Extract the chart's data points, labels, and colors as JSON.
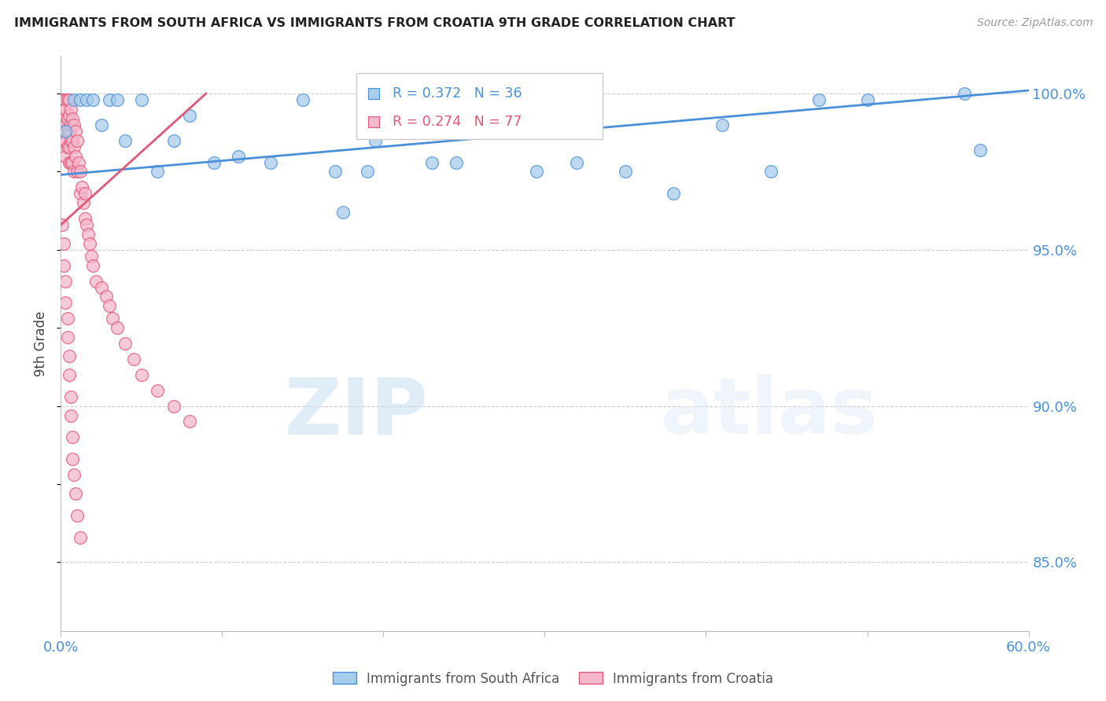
{
  "title": "IMMIGRANTS FROM SOUTH AFRICA VS IMMIGRANTS FROM CROATIA 9TH GRADE CORRELATION CHART",
  "source": "Source: ZipAtlas.com",
  "ylabel": "9th Grade",
  "xlim": [
    0.0,
    0.6
  ],
  "ylim": [
    0.828,
    1.012
  ],
  "xticks": [
    0.0,
    0.1,
    0.2,
    0.3,
    0.4,
    0.5,
    0.6
  ],
  "xticklabels": [
    "0.0%",
    "",
    "",
    "",
    "",
    "",
    "60.0%"
  ],
  "yticks": [
    0.85,
    0.9,
    0.95,
    1.0
  ],
  "yticklabels": [
    "85.0%",
    "90.0%",
    "95.0%",
    "100.0%"
  ],
  "watermark_zip": "ZIP",
  "watermark_atlas": "atlas",
  "legend_r1": "R = 0.372",
  "legend_n1": "N = 36",
  "legend_r2": "R = 0.274",
  "legend_n2": "N = 77",
  "color_blue": "#a8ccec",
  "color_pink": "#f4b8cb",
  "color_blue_dark": "#4a90d9",
  "color_pink_dark": "#e05878",
  "color_axis_text": "#4a90d9",
  "blue_scatter_x": [
    0.003,
    0.008,
    0.012,
    0.016,
    0.02,
    0.025,
    0.03,
    0.035,
    0.04,
    0.05,
    0.06,
    0.07,
    0.08,
    0.095,
    0.11,
    0.13,
    0.15,
    0.17,
    0.195,
    0.22,
    0.245,
    0.27,
    0.295,
    0.32,
    0.35,
    0.38,
    0.41,
    0.44,
    0.47,
    0.5,
    0.175,
    0.19,
    0.21,
    0.23,
    0.56,
    0.57
  ],
  "blue_scatter_y": [
    0.988,
    0.998,
    0.998,
    0.998,
    0.998,
    0.99,
    0.998,
    0.998,
    0.985,
    0.998,
    0.975,
    0.985,
    0.993,
    0.978,
    0.98,
    0.978,
    0.998,
    0.975,
    0.985,
    0.99,
    0.978,
    0.993,
    0.975,
    0.978,
    0.975,
    0.968,
    0.99,
    0.975,
    0.998,
    0.998,
    0.962,
    0.975,
    0.998,
    0.978,
    1.0,
    0.982
  ],
  "pink_scatter_x": [
    0.001,
    0.001,
    0.001,
    0.002,
    0.002,
    0.002,
    0.002,
    0.002,
    0.003,
    0.003,
    0.003,
    0.003,
    0.003,
    0.004,
    0.004,
    0.004,
    0.004,
    0.005,
    0.005,
    0.005,
    0.005,
    0.005,
    0.006,
    0.006,
    0.006,
    0.006,
    0.007,
    0.007,
    0.007,
    0.008,
    0.008,
    0.008,
    0.009,
    0.009,
    0.01,
    0.01,
    0.011,
    0.012,
    0.012,
    0.013,
    0.014,
    0.015,
    0.015,
    0.016,
    0.017,
    0.018,
    0.019,
    0.02,
    0.022,
    0.025,
    0.028,
    0.03,
    0.032,
    0.035,
    0.04,
    0.045,
    0.05,
    0.06,
    0.07,
    0.08,
    0.001,
    0.002,
    0.002,
    0.003,
    0.003,
    0.004,
    0.004,
    0.005,
    0.005,
    0.006,
    0.006,
    0.007,
    0.007,
    0.008,
    0.009,
    0.01,
    0.012
  ],
  "pink_scatter_y": [
    0.998,
    0.995,
    0.99,
    0.998,
    0.995,
    0.992,
    0.988,
    0.985,
    0.998,
    0.995,
    0.99,
    0.985,
    0.98,
    0.998,
    0.992,
    0.988,
    0.983,
    0.998,
    0.993,
    0.988,
    0.983,
    0.978,
    0.995,
    0.99,
    0.985,
    0.978,
    0.992,
    0.985,
    0.978,
    0.99,
    0.983,
    0.975,
    0.988,
    0.98,
    0.985,
    0.975,
    0.978,
    0.975,
    0.968,
    0.97,
    0.965,
    0.968,
    0.96,
    0.958,
    0.955,
    0.952,
    0.948,
    0.945,
    0.94,
    0.938,
    0.935,
    0.932,
    0.928,
    0.925,
    0.92,
    0.915,
    0.91,
    0.905,
    0.9,
    0.895,
    0.958,
    0.952,
    0.945,
    0.94,
    0.933,
    0.928,
    0.922,
    0.916,
    0.91,
    0.903,
    0.897,
    0.89,
    0.883,
    0.878,
    0.872,
    0.865,
    0.858
  ],
  "blue_trend_x": [
    0.0,
    0.6
  ],
  "blue_trend_y": [
    0.974,
    1.001
  ],
  "pink_trend_x": [
    0.0,
    0.09
  ],
  "pink_trend_y": [
    0.958,
    1.0
  ]
}
